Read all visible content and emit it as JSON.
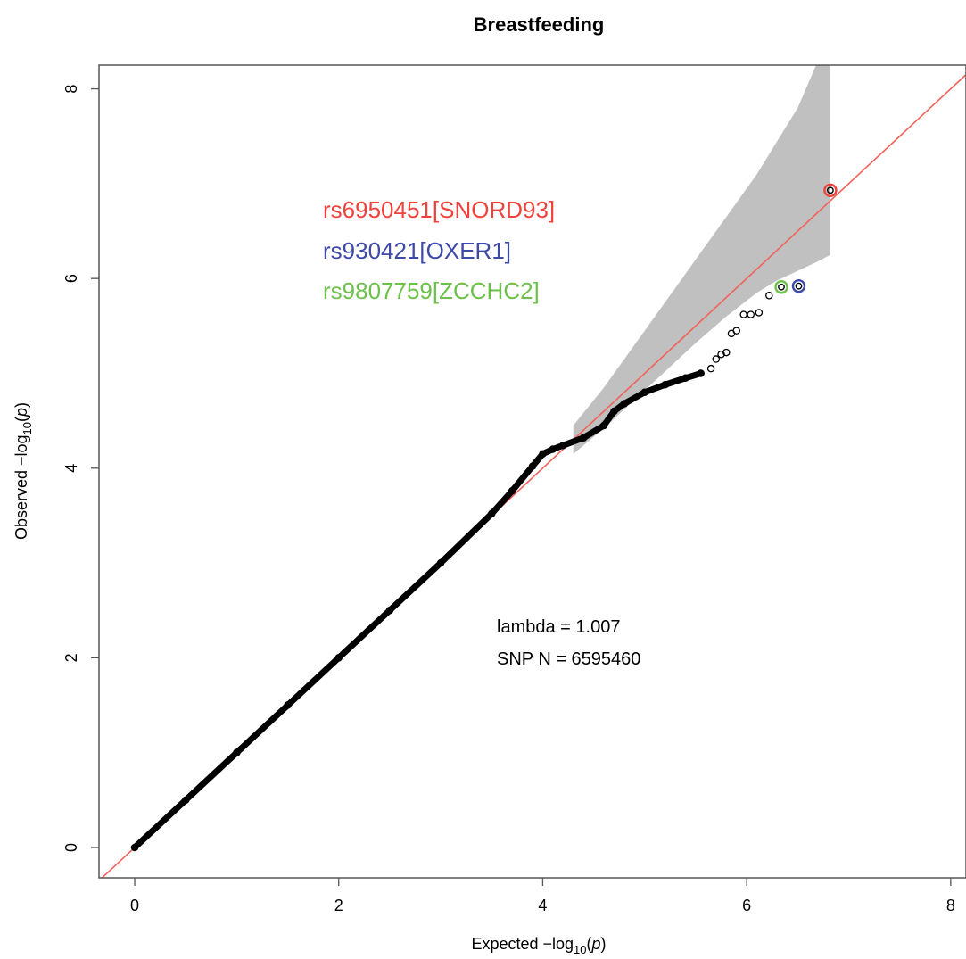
{
  "chart_data": {
    "type": "scatter",
    "title": "Breastfeeding",
    "xlabel": {
      "prefix": "Expected  −log",
      "sub": "10",
      "open": "(",
      "var": "p",
      "close": ")"
    },
    "ylabel": {
      "prefix": "Observed  −log",
      "sub": "10",
      "open": "(",
      "var": "p",
      "close": ")"
    },
    "xlim": [
      -0.35,
      8.15
    ],
    "ylim": [
      -0.32,
      8.25
    ],
    "xticks": [
      "0",
      "2",
      "4",
      "6",
      "8"
    ],
    "yticks": [
      "0",
      "2",
      "4",
      "6",
      "8"
    ],
    "grid": false,
    "reference_line": {
      "slope": 1,
      "intercept": 0,
      "color": "#f0625a"
    },
    "confidence_band": {
      "color": "#c0c0c0",
      "x": [
        4.3,
        4.6,
        4.9,
        5.2,
        5.5,
        5.8,
        6.1,
        6.3,
        6.5,
        6.7,
        6.82
      ],
      "upper": [
        4.45,
        4.85,
        5.3,
        5.75,
        6.2,
        6.65,
        7.1,
        7.45,
        7.8,
        8.3,
        8.25
      ],
      "lower": [
        4.15,
        4.42,
        4.72,
        5.02,
        5.32,
        5.6,
        5.85,
        5.98,
        6.08,
        6.18,
        6.25
      ]
    },
    "series": [
      {
        "color": "#000000",
        "points": [
          [
            0.0,
            0.0
          ],
          [
            0.5,
            0.5
          ],
          [
            1.0,
            1.0
          ],
          [
            1.5,
            1.5
          ],
          [
            2.0,
            2.0
          ],
          [
            2.5,
            2.5
          ],
          [
            3.0,
            3.0
          ],
          [
            3.5,
            3.52
          ],
          [
            3.7,
            3.76
          ],
          [
            3.9,
            4.02
          ],
          [
            4.0,
            4.15
          ],
          [
            4.1,
            4.2
          ],
          [
            4.2,
            4.24
          ],
          [
            4.4,
            4.32
          ],
          [
            4.6,
            4.45
          ],
          [
            4.7,
            4.6
          ],
          [
            4.8,
            4.68
          ],
          [
            5.0,
            4.8
          ],
          [
            5.2,
            4.88
          ],
          [
            5.4,
            4.95
          ],
          [
            5.55,
            5.0
          ],
          [
            5.65,
            5.05
          ],
          [
            5.7,
            5.15
          ],
          [
            5.75,
            5.2
          ],
          [
            5.8,
            5.22
          ],
          [
            5.85,
            5.42
          ],
          [
            5.9,
            5.45
          ],
          [
            5.97,
            5.62
          ],
          [
            6.04,
            5.62
          ],
          [
            6.12,
            5.64
          ],
          [
            6.22,
            5.82
          ]
        ]
      }
    ],
    "highlighted": [
      {
        "label": "rs6950451[SNORD93]",
        "color": "#f0423c",
        "x": 6.82,
        "y": 6.93
      },
      {
        "label": "rs930421[OXER1]",
        "color": "#3e4aa8",
        "x": 6.51,
        "y": 5.92
      },
      {
        "label": "rs9807759[ZCCHC2]",
        "color": "#6cc14a",
        "x": 6.34,
        "y": 5.91
      }
    ],
    "annotations": {
      "lambda": "lambda = 1.007",
      "snp_n": "SNP N = 6595460"
    }
  }
}
